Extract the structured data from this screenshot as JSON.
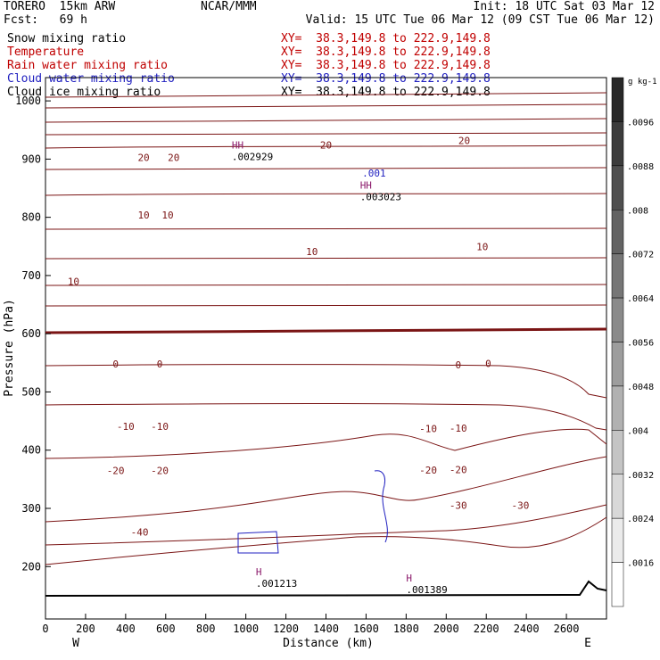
{
  "header": {
    "model": "TORERO  15km ARW",
    "org": "NCAR/MMM",
    "init": "Init: 18 UTC Sat 03 Mar 12",
    "fcst": "Fcst:   69 h",
    "valid": "Valid: 15 UTC Tue 06 Mar 12 (09 CST Tue 06 Mar 12)"
  },
  "fields": [
    {
      "name": "Snow mixing ratio",
      "xy": "XY=  38.3,149.8 to 222.9,149.8",
      "color": "#000000"
    },
    {
      "name": "Temperature",
      "xy": "XY=  38.3,149.8 to 222.9,149.8",
      "color": "#c00000"
    },
    {
      "name": "Rain water mixing ratio",
      "xy": "XY=  38.3,149.8 to 222.9,149.8",
      "color": "#c00000"
    },
    {
      "name": "Cloud water mixing ratio",
      "xy": "XY=  38.3,149.8 to 222.9,149.8",
      "color": "#2020c0"
    },
    {
      "name": "Cloud ice mixing ratio",
      "xy": "XY=  38.3,149.8 to 222.9,149.8",
      "color": "#000000"
    }
  ],
  "colors": {
    "temperature": "#7a1414",
    "cloud_water": "#2020c0",
    "rain": "#8b1a6b",
    "terrain": "#000000"
  },
  "chart_data": {
    "type": "cross-section",
    "xlabel": "Distance (km)",
    "ylabel": "Pressure (hPa)",
    "xlim": [
      0,
      2800
    ],
    "ylim": [
      1040,
      110
    ],
    "x_ticks": [
      0,
      200,
      400,
      600,
      800,
      1000,
      1200,
      1400,
      1600,
      1800,
      2000,
      2200,
      2400,
      2600
    ],
    "y_ticks": [
      200,
      300,
      400,
      500,
      600,
      700,
      800,
      900,
      1000
    ],
    "x_end_labels": {
      "left": "W",
      "right": "E"
    },
    "colorbar": {
      "unit": "g kg-1",
      "ticks": [
        ".0096",
        ".0088",
        ".008",
        ".0072",
        ".0064",
        ".0056",
        ".0048",
        ".004",
        ".0032",
        ".0024",
        ".0016"
      ]
    },
    "temperature_labels": [
      {
        "text": "-40",
        "x": 470,
        "p": 259
      },
      {
        "text": "-30",
        "x": 2060,
        "p": 305
      },
      {
        "text": "-30",
        "x": 2370,
        "p": 305
      },
      {
        "text": "-20",
        "x": 350,
        "p": 365
      },
      {
        "text": "-20",
        "x": 570,
        "p": 365
      },
      {
        "text": "-20",
        "x": 1910,
        "p": 366
      },
      {
        "text": "-20",
        "x": 2060,
        "p": 367
      },
      {
        "text": "-10",
        "x": 400,
        "p": 441
      },
      {
        "text": "-10",
        "x": 570,
        "p": 441
      },
      {
        "text": "-10",
        "x": 1910,
        "p": 437
      },
      {
        "text": "-10",
        "x": 2060,
        "p": 438
      },
      {
        "text": "0",
        "x": 350,
        "p": 548
      },
      {
        "text": "0",
        "x": 570,
        "p": 548
      },
      {
        "text": "0",
        "x": 2060,
        "p": 547
      },
      {
        "text": "0",
        "x": 2210,
        "p": 549
      },
      {
        "text": "10",
        "x": 140,
        "p": 690
      },
      {
        "text": "10",
        "x": 1330,
        "p": 741
      },
      {
        "text": "10",
        "x": 2180,
        "p": 750
      },
      {
        "text": "10",
        "x": 490,
        "p": 804
      },
      {
        "text": "10",
        "x": 610,
        "p": 804
      },
      {
        "text": "20",
        "x": 490,
        "p": 903
      },
      {
        "text": "20",
        "x": 640,
        "p": 903
      },
      {
        "text": "20",
        "x": 1400,
        "p": 924
      },
      {
        "text": "20",
        "x": 2090,
        "p": 932
      }
    ],
    "extrema_labels": [
      {
        "mark": "H",
        "value": ".001213",
        "x": 1050,
        "p": 170
      },
      {
        "mark": "H",
        "value": ".001389",
        "x": 1800,
        "p": 159
      },
      {
        "mark": "HH",
        "value": ".003023",
        "x": 1570,
        "p": 834
      },
      {
        "mark": "HH",
        "value": ".002929",
        "x": 930,
        "p": 903
      }
    ],
    "cloud_water_labels": [
      {
        "text": ".001",
        "x": 1640,
        "p": 876
      }
    ]
  }
}
